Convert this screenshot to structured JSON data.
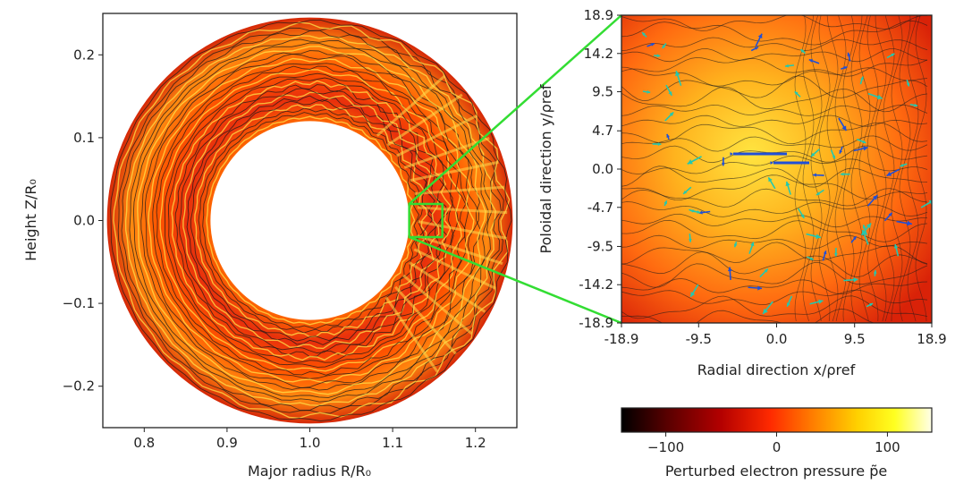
{
  "chart_data": [
    {
      "type": "heatmap",
      "panel": "poloidal cross-section (annulus)",
      "xlabel": "Major radius R/R₀",
      "ylabel": "Height Z/R₀",
      "xlim": [
        0.75,
        1.25
      ],
      "ylim": [
        -0.25,
        0.25
      ],
      "xticks": [
        "0.8",
        "0.9",
        "1.0",
        "1.1",
        "1.2"
      ],
      "xtick_values": [
        0.8,
        0.9,
        1.0,
        1.1,
        1.2
      ],
      "yticks": [
        "0.2",
        "0.1",
        "0.0",
        "−0.1",
        "−0.2"
      ],
      "ytick_values": [
        0.2,
        0.1,
        0.0,
        -0.1,
        -0.2
      ],
      "annulus": {
        "center_R": 1.0,
        "center_Z": 0.0,
        "inner_radius": 0.12,
        "outer_radius": 0.245
      },
      "zoom_box": {
        "R": [
          1.12,
          1.16
        ],
        "Z": [
          -0.02,
          0.02
        ]
      },
      "grid": false
    },
    {
      "type": "heatmap",
      "panel": "zoomed local domain",
      "xlabel": "Radial direction x/ρref",
      "ylabel": "Poloidal direction y/ρref",
      "xlim": [
        -18.9,
        18.9
      ],
      "ylim": [
        -18.9,
        18.9
      ],
      "xticks": [
        "-18.9",
        "-9.5",
        "0.0",
        "9.5",
        "18.9"
      ],
      "xtick_values": [
        -18.9,
        -9.5,
        0.0,
        9.5,
        18.9
      ],
      "yticks": [
        "18.9",
        "14.2",
        "9.5",
        "4.7",
        "0.0",
        "-4.7",
        "-9.5",
        "-14.2",
        "-18.9"
      ],
      "ytick_values": [
        18.9,
        14.2,
        9.5,
        4.7,
        0.0,
        -4.7,
        -9.5,
        -14.2,
        -18.9
      ],
      "overlay": "contours and flow arrows (blue/cyan)",
      "grid": false
    },
    {
      "type": "colorbar",
      "label": "Perturbed electron pressure p̃e",
      "range": [
        -140,
        140
      ],
      "ticks": [
        "−100",
        "0",
        "100"
      ],
      "tick_values": [
        -100,
        0,
        100
      ],
      "colormap": "hot",
      "colors": [
        "#000000",
        "#5a0000",
        "#b30000",
        "#ff2a00",
        "#ff8000",
        "#ffd000",
        "#ffff20",
        "#ffffe8"
      ]
    }
  ],
  "colors": {
    "zoom_connector": "#33dd33",
    "arrow_blue": "#1f4fd8",
    "arrow_cyan": "#22c8b0",
    "contour": "#1a1a1a"
  }
}
